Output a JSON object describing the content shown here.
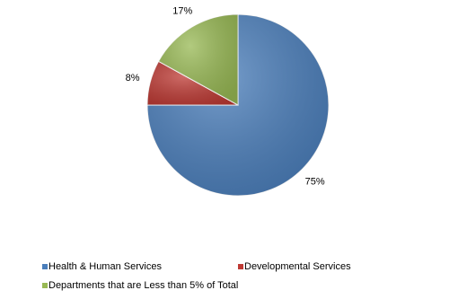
{
  "chart_data": {
    "type": "pie",
    "categories": [
      "Health & Human Services",
      "Developmental Services",
      "Departments that are Less than 5% of Total"
    ],
    "values": [
      75,
      8,
      17
    ],
    "value_labels": [
      "75%",
      "8%",
      "17%"
    ],
    "colors": [
      "#4a7ebb",
      "#be3a34",
      "#98b954"
    ]
  }
}
